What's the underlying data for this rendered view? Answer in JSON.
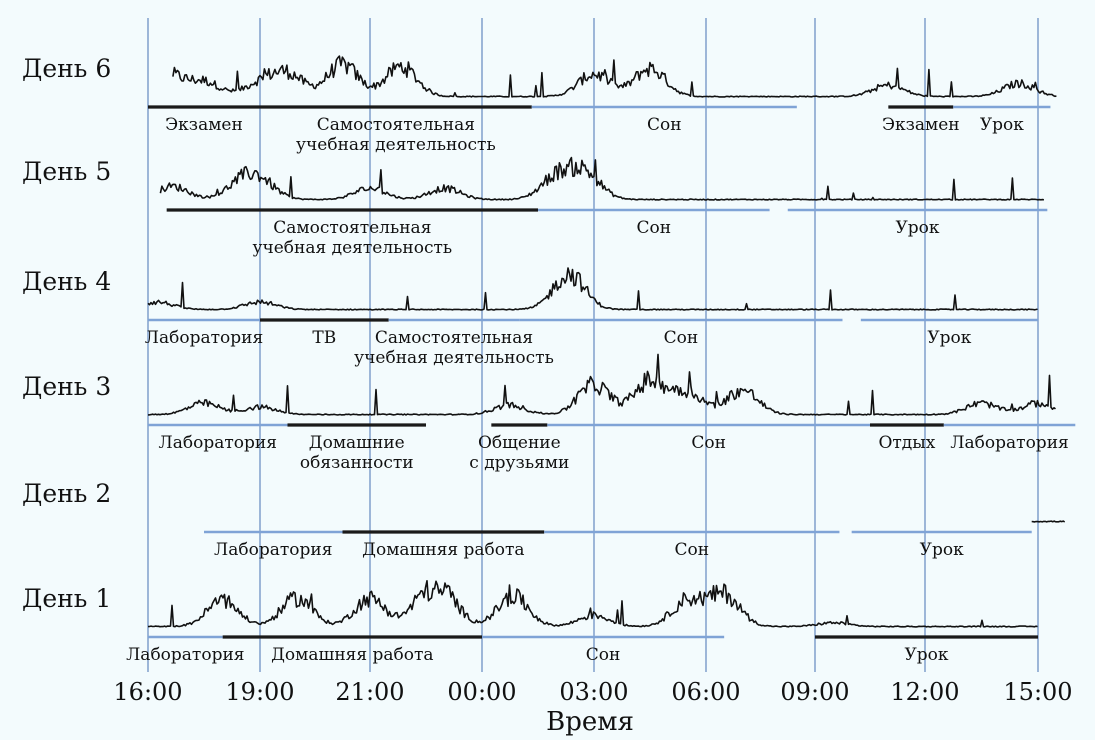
{
  "chart_data": {
    "type": "line",
    "xlabel": "Время",
    "x_ticks": [
      "16:00",
      "19:00",
      "21:00",
      "00:00",
      "03:00",
      "06:00",
      "09:00",
      "12:00",
      "15:00"
    ],
    "colors": {
      "background": "#f3fbfd",
      "trace": "#111111",
      "gridline": "#6f92c4",
      "activity_bar_dark": "#1a1a1a",
      "activity_bar_light": "#7fa3d6"
    },
    "days": [
      {
        "label": "День 6",
        "activities": [
          {
            "label": "Экзамен",
            "from": "16:00",
            "to": "19:00",
            "bar": "dark"
          },
          {
            "label": "Самостоятельная\nучебная деятельность",
            "from": "19:00",
            "to": "01:20",
            "bar": "dark"
          },
          {
            "label": "Сон",
            "from": "01:20",
            "to": "08:30",
            "bar": "light"
          },
          {
            "label": "Экзамен",
            "from": "11:00",
            "to": "12:45",
            "bar": "dark"
          },
          {
            "label": "Урок",
            "from": "12:45",
            "to": "15:20",
            "bar": "light"
          }
        ]
      },
      {
        "label": "День 5",
        "activities": [
          {
            "label": "Самостоятельная\nучебная деятельность",
            "from": "16:30",
            "to": "01:30",
            "bar": "dark"
          },
          {
            "label": "Сон",
            "from": "01:30",
            "to": "07:45",
            "bar": "light"
          },
          {
            "label": "Урок",
            "from": "08:15",
            "to": "15:15",
            "bar": "light"
          }
        ]
      },
      {
        "label": "День 4",
        "activities": [
          {
            "label": "Лаборатория",
            "from": "16:00",
            "to": "19:00",
            "bar": "light"
          },
          {
            "label": "ТВ",
            "from": "19:00",
            "to": "21:30",
            "bar": "dark"
          },
          {
            "label": "Самостоятельная\nучебная деятельность",
            "from": "21:30",
            "to": "01:00",
            "bar": "light"
          },
          {
            "label": "Сон",
            "from": "01:00",
            "to": "09:45",
            "bar": "light"
          },
          {
            "label": "Урок",
            "from": "10:15",
            "to": "15:00",
            "bar": "light"
          }
        ]
      },
      {
        "label": "День 3",
        "activities": [
          {
            "label": "Лаборатория",
            "from": "16:00",
            "to": "19:30",
            "bar": "light"
          },
          {
            "label": "Домашние\nобязанности",
            "from": "19:30",
            "to": "22:30",
            "bar": "dark"
          },
          {
            "label": "Общение\nс друзьями",
            "from": "00:15",
            "to": "01:45",
            "bar": "dark"
          },
          {
            "label": "Сон",
            "from": "01:45",
            "to": "10:30",
            "bar": "light"
          },
          {
            "label": "Отдых",
            "from": "10:30",
            "to": "12:30",
            "bar": "dark"
          },
          {
            "label": "Лаборатория",
            "from": "12:30",
            "to": "16:00",
            "bar": "light"
          }
        ]
      },
      {
        "label": "День 2",
        "activities": [
          {
            "label": "Лаборатория",
            "from": "17:30",
            "to": "20:30",
            "bar": "light"
          },
          {
            "label": "Домашняя работа",
            "from": "20:30",
            "to": "01:40",
            "bar": "dark"
          },
          {
            "label": "Сон",
            "from": "01:40",
            "to": "09:40",
            "bar": "light"
          },
          {
            "label": "Урок",
            "from": "10:00",
            "to": "14:50",
            "bar": "light"
          }
        ]
      },
      {
        "label": "День 1",
        "activities": [
          {
            "label": "Лаборатория",
            "from": "16:00",
            "to": "18:00",
            "bar": "light"
          },
          {
            "label": "Домашняя работа",
            "from": "18:00",
            "to": "00:00",
            "bar": "dark"
          },
          {
            "label": "Сон",
            "from": "00:00",
            "to": "06:30",
            "bar": "light"
          },
          {
            "label": "Урок",
            "from": "09:00",
            "to": "15:00",
            "bar": "dark"
          }
        ]
      }
    ]
  }
}
